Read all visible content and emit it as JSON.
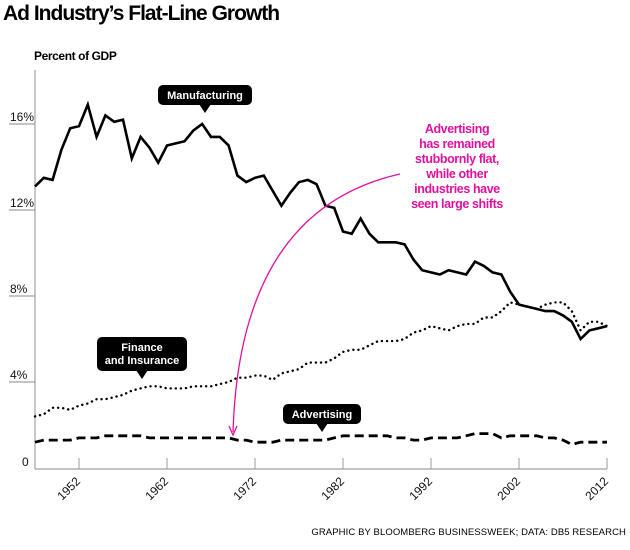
{
  "chart_data": {
    "type": "line",
    "title": "Ad Industry’s Flat-Line Growth",
    "ylabel": "Percent of GDP",
    "xlabel": "",
    "xlim": [
      1947,
      2012
    ],
    "ylim": [
      0,
      18
    ],
    "x_ticks": [
      1952,
      1962,
      1972,
      1982,
      1992,
      2002,
      2012
    ],
    "y_ticks": [
      {
        "value": 0,
        "label": "0"
      },
      {
        "value": 4,
        "label": "4%"
      },
      {
        "value": 8,
        "label": "8%"
      },
      {
        "value": 12,
        "label": "12%"
      },
      {
        "value": 16,
        "label": "16%"
      }
    ],
    "grid": false,
    "x": [
      1947,
      1948,
      1949,
      1950,
      1951,
      1952,
      1953,
      1954,
      1955,
      1956,
      1957,
      1958,
      1959,
      1960,
      1961,
      1962,
      1963,
      1964,
      1965,
      1966,
      1967,
      1968,
      1969,
      1970,
      1971,
      1972,
      1973,
      1974,
      1975,
      1976,
      1977,
      1978,
      1979,
      1980,
      1981,
      1982,
      1983,
      1984,
      1985,
      1986,
      1987,
      1988,
      1989,
      1990,
      1991,
      1992,
      1993,
      1994,
      1995,
      1996,
      1997,
      1998,
      1999,
      2000,
      2001,
      2002,
      2003,
      2004,
      2005,
      2006,
      2007,
      2008,
      2009,
      2010,
      2011,
      2012
    ],
    "series": [
      {
        "name": "Manufacturing",
        "style": "solid",
        "callout_year": 1966,
        "values": [
          13.1,
          13.5,
          13.4,
          14.8,
          15.8,
          15.9,
          16.9,
          15.4,
          16.4,
          16.1,
          16.2,
          14.4,
          15.4,
          14.9,
          14.2,
          15.0,
          15.1,
          15.2,
          15.7,
          16.0,
          15.4,
          15.4,
          15.0,
          13.6,
          13.3,
          13.5,
          13.6,
          12.9,
          12.2,
          12.8,
          13.3,
          13.4,
          13.2,
          12.2,
          12.1,
          11.0,
          10.9,
          11.6,
          10.9,
          10.5,
          10.5,
          10.5,
          10.4,
          9.7,
          9.2,
          9.1,
          9.0,
          9.2,
          9.1,
          9.0,
          9.6,
          9.4,
          9.1,
          9.0,
          8.2,
          7.6,
          7.5,
          7.4,
          7.3,
          7.3,
          7.1,
          6.8,
          6.0,
          6.4,
          6.5,
          6.6
        ]
      },
      {
        "name": "Finance and Insurance",
        "style": "dotted",
        "callout_year": 1961,
        "values": [
          2.4,
          2.5,
          2.8,
          2.8,
          2.7,
          2.9,
          3.0,
          3.2,
          3.2,
          3.3,
          3.4,
          3.6,
          3.7,
          3.8,
          3.8,
          3.7,
          3.7,
          3.7,
          3.8,
          3.8,
          3.8,
          3.9,
          4.0,
          4.2,
          4.2,
          4.3,
          4.3,
          4.1,
          4.4,
          4.5,
          4.6,
          4.9,
          4.9,
          4.9,
          5.1,
          5.4,
          5.5,
          5.5,
          5.7,
          5.9,
          5.9,
          5.9,
          6.0,
          6.3,
          6.4,
          6.6,
          6.5,
          6.4,
          6.6,
          6.7,
          6.7,
          7.0,
          7.0,
          7.3,
          7.7,
          7.6,
          7.5,
          7.4,
          7.6,
          7.7,
          7.7,
          7.3,
          6.4,
          6.8,
          6.8,
          6.6
        ]
      },
      {
        "name": "Advertising",
        "style": "dashed",
        "callout_year": 1979,
        "values": [
          1.2,
          1.3,
          1.3,
          1.3,
          1.3,
          1.4,
          1.4,
          1.4,
          1.5,
          1.5,
          1.5,
          1.5,
          1.5,
          1.4,
          1.4,
          1.4,
          1.4,
          1.4,
          1.4,
          1.4,
          1.4,
          1.4,
          1.4,
          1.3,
          1.3,
          1.2,
          1.2,
          1.2,
          1.3,
          1.3,
          1.3,
          1.3,
          1.3,
          1.3,
          1.4,
          1.5,
          1.5,
          1.5,
          1.5,
          1.5,
          1.5,
          1.4,
          1.4,
          1.3,
          1.3,
          1.4,
          1.4,
          1.4,
          1.4,
          1.5,
          1.6,
          1.6,
          1.6,
          1.4,
          1.5,
          1.5,
          1.5,
          1.5,
          1.4,
          1.4,
          1.3,
          1.1,
          1.2,
          1.2,
          1.2,
          1.2
        ]
      }
    ],
    "annotations": [
      {
        "text": "Advertising has remained stubbornly flat, while other industries have seen large shifts",
        "color": "#e0119d",
        "points_to": "Advertising"
      }
    ],
    "source": "GRAPHIC BY BLOOMBERG BUSINESSWEEK; DATA: DB5 RESEARCH"
  },
  "annotation_lines": [
    "Advertising",
    "has remained",
    "stubbornly flat,",
    "while other",
    "industries have",
    "seen large shifts"
  ],
  "callouts": {
    "manufacturing": [
      "Manufacturing"
    ],
    "finance": [
      "Finance",
      "and Insurance"
    ],
    "advertising": [
      "Advertising"
    ]
  },
  "colors": {
    "line": "#000000",
    "axis": "#c8c8c8",
    "accent": "#e0119d",
    "callout_bg": "#000000"
  }
}
